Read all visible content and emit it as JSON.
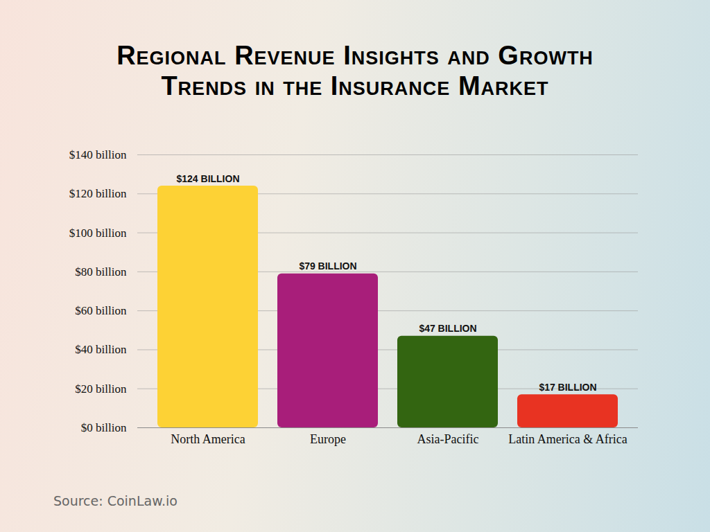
{
  "chart_data": {
    "type": "bar",
    "title": [
      "Regional Revenue Insights and Growth",
      "Trends in the Insurance Market"
    ],
    "caption": "Source: CoinLaw.io",
    "categories": [
      "North America",
      "Europe",
      "Asia-Pacific",
      "Latin America & Africa"
    ],
    "values": [
      124,
      79,
      47,
      17
    ],
    "value_labels": [
      "$124 BILLION",
      "$79 BILLION",
      "$47 BILLION",
      "$17 BILLION"
    ],
    "colors": [
      "#fdd235",
      "#a81e7a",
      "#336511",
      "#e83322"
    ],
    "ylim": [
      0,
      140
    ],
    "yticks": [
      {
        "value": 0,
        "label": "$0 billion"
      },
      {
        "value": 20,
        "label": "$20 billion"
      },
      {
        "value": 40,
        "label": "$40 billion"
      },
      {
        "value": 60,
        "label": "$60 billion"
      },
      {
        "value": 80,
        "label": "$80 billion"
      },
      {
        "value": 100,
        "label": "$100 billion"
      },
      {
        "value": 120,
        "label": "$120 billion"
      },
      {
        "value": 140,
        "label": "$140 billion"
      }
    ],
    "grid": true,
    "data_labels": true
  }
}
